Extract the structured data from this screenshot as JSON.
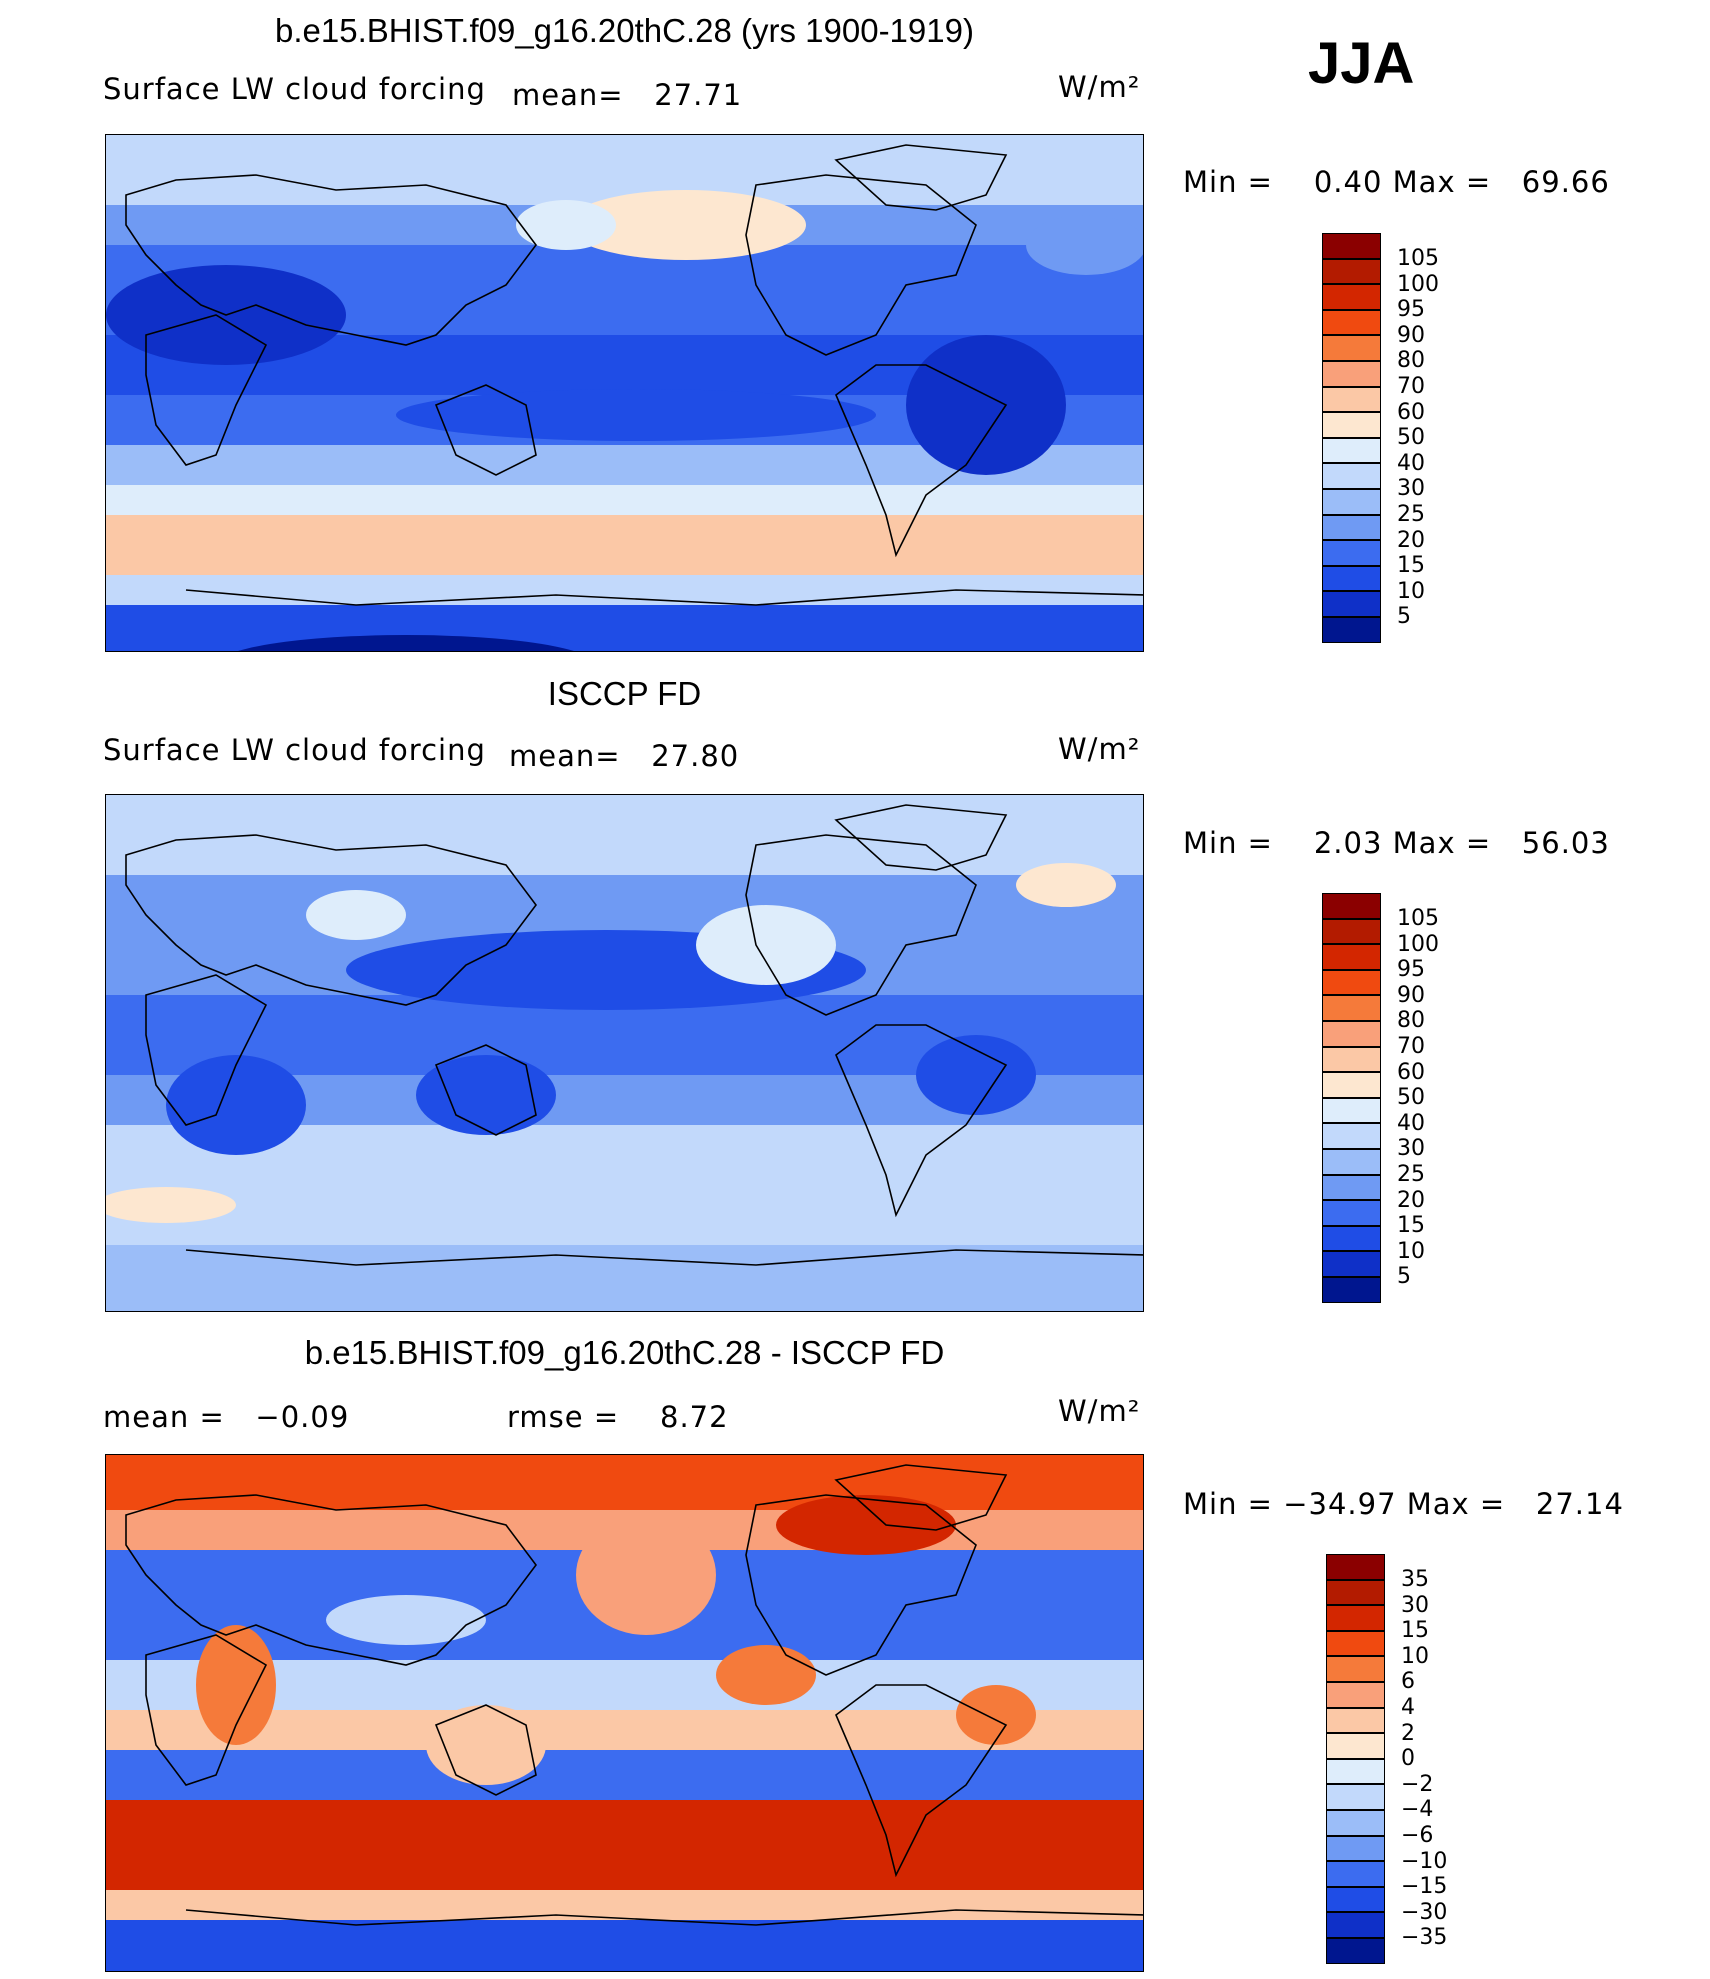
{
  "season": "JJA",
  "units": "W/m²",
  "panels": [
    {
      "id": "model",
      "title": "b.e15.BHIST.f09_g16.20thC.28 (yrs 1900-1919)",
      "subtitle": "Surface LW cloud forcing",
      "mean_label": "mean=",
      "mean_value": "27.71",
      "min_label": "Min  =",
      "min_value": "0.40",
      "max_label": "Max  =",
      "max_value": "69.66",
      "levels": [
        "105",
        "100",
        "95",
        "90",
        "80",
        "70",
        "60",
        "50",
        "40",
        "30",
        "25",
        "20",
        "15",
        "10",
        "5"
      ],
      "colors": [
        "#8b0000",
        "#b31b00",
        "#d32600",
        "#f04a10",
        "#f57a3a",
        "#f9a07a",
        "#fbc8a6",
        "#fde7d0",
        "#deedfb",
        "#c2d9fb",
        "#9bbdf8",
        "#6f9af3",
        "#3c6cf0",
        "#1f4de6",
        "#0f30c8",
        "#00168f"
      ]
    },
    {
      "id": "obs",
      "title": "ISCCP FD",
      "subtitle": "Surface LW cloud forcing",
      "mean_label": "mean=",
      "mean_value": "27.80",
      "min_label": "Min  =",
      "min_value": "2.03",
      "max_label": "Max  =",
      "max_value": "56.03",
      "levels": [
        "105",
        "100",
        "95",
        "90",
        "80",
        "70",
        "60",
        "50",
        "40",
        "30",
        "25",
        "20",
        "15",
        "10",
        "5"
      ],
      "colors": [
        "#8b0000",
        "#b31b00",
        "#d32600",
        "#f04a10",
        "#f57a3a",
        "#f9a07a",
        "#fbc8a6",
        "#fde7d0",
        "#deedfb",
        "#c2d9fb",
        "#9bbdf8",
        "#6f9af3",
        "#3c6cf0",
        "#1f4de6",
        "#0f30c8",
        "#00168f"
      ]
    },
    {
      "id": "diff",
      "title": "b.e15.BHIST.f09_g16.20thC.28 - ISCCP FD",
      "mean_label": "mean  =",
      "mean_value": "−0.09",
      "rmse_label": "rmse  =",
      "rmse_value": "8.72",
      "min_label": "Min  =",
      "min_value": "−34.97",
      "max_label": "Max  =",
      "max_value": "27.14",
      "levels": [
        "35",
        "30",
        "15",
        "10",
        "6",
        "4",
        "2",
        "0",
        "−2",
        "−4",
        "−6",
        "−10",
        "−15",
        "−30",
        "−35"
      ],
      "colors": [
        "#8b0000",
        "#b31b00",
        "#d32600",
        "#f04a10",
        "#f57a3a",
        "#f9a07a",
        "#fbc8a6",
        "#fde7d0",
        "#deedfb",
        "#c2d9fb",
        "#9bbdf8",
        "#6f9af3",
        "#3c6cf0",
        "#1f4de6",
        "#0f30c8",
        "#00168f"
      ]
    }
  ]
}
